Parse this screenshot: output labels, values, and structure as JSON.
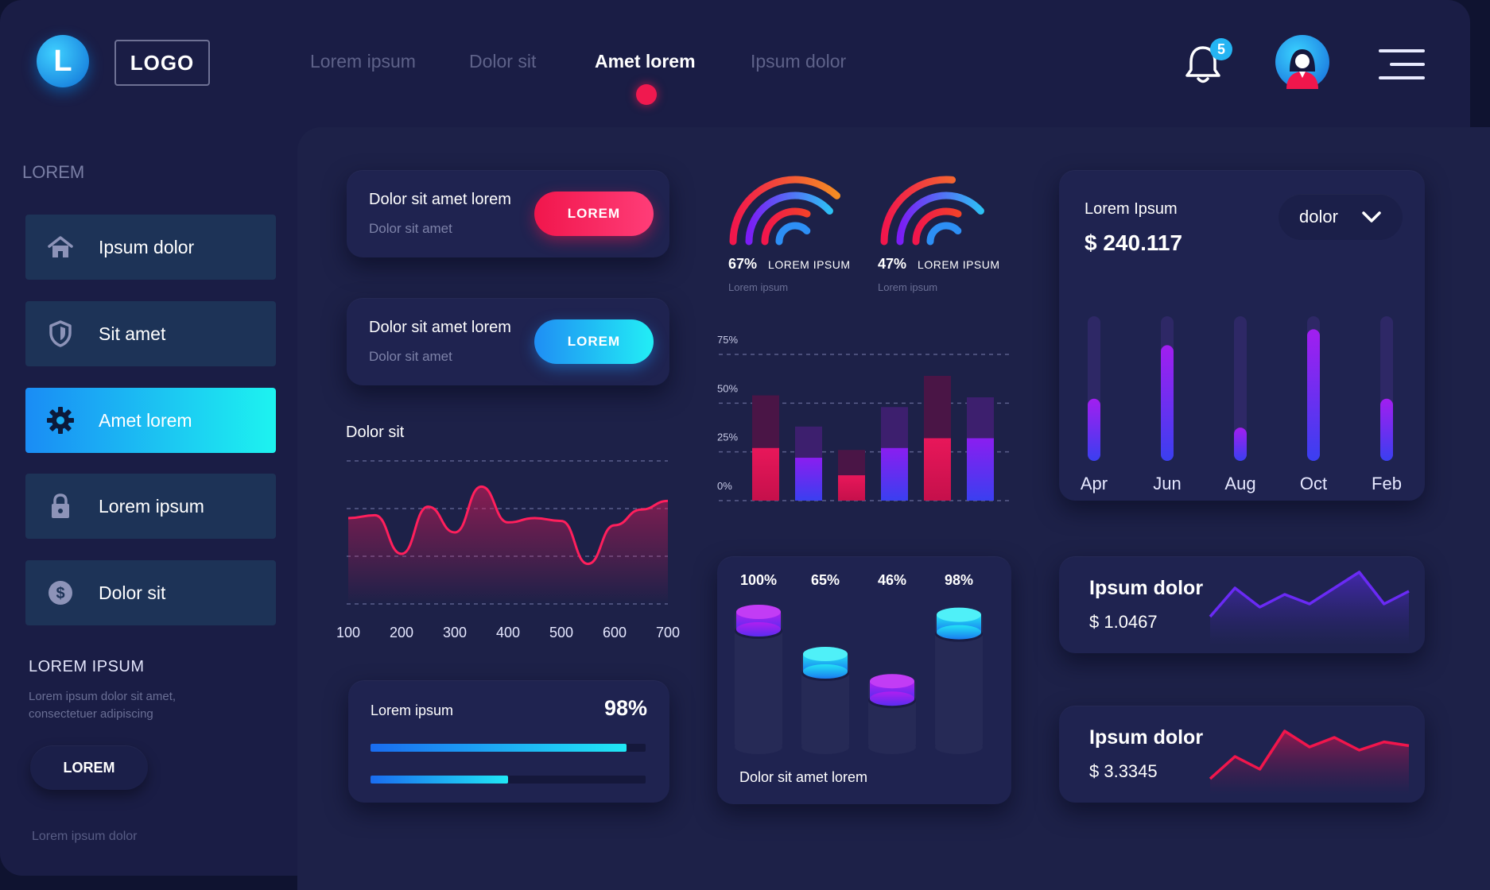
{
  "header": {
    "logo_letter": "L",
    "logo_text": "LOGO",
    "nav": [
      "Lorem ipsum",
      "Dolor sit",
      "Amet lorem",
      "Ipsum dolor"
    ],
    "active_nav": "Amet lorem",
    "notification_count": "5"
  },
  "sidebar": {
    "title": "LOREM",
    "items": [
      {
        "label": "Ipsum dolor",
        "icon": "home-icon"
      },
      {
        "label": "Sit amet",
        "icon": "shield-icon"
      },
      {
        "label": "Amet lorem",
        "icon": "gear-icon",
        "active": true
      },
      {
        "label": "Lorem ipsum",
        "icon": "lock-icon"
      },
      {
        "label": "Dolor sit",
        "icon": "dollar-icon"
      }
    ],
    "section_title": "LOREM IPSUM",
    "section_text": "Lorem ipsum dolor sit amet, consectetuer adipiscing",
    "button": "LOREM",
    "footer": "Lorem ipsum dolor"
  },
  "cards": {
    "action1": {
      "title": "Dolor sit amet lorem",
      "subtitle": "Dolor sit amet",
      "button": "LOREM"
    },
    "action2": {
      "title": "Dolor sit amet lorem",
      "subtitle": "Dolor sit amet",
      "button": "LOREM"
    },
    "progress": {
      "label": "Lorem ipsum",
      "value": "98%",
      "bars": [
        0.93,
        0.5
      ]
    },
    "gauges": [
      {
        "pct": "67%",
        "label": "LOREM IPSUM",
        "sub": "Lorem ipsum"
      },
      {
        "pct": "47%",
        "label": "LOREM IPSUM",
        "sub": "Lorem ipsum"
      }
    ],
    "cylinders_caption": "Dolor sit amet lorem",
    "balance": {
      "label": "Lorem Ipsum",
      "value": "$ 240.117",
      "dropdown": "dolor"
    },
    "mini1": {
      "title": "Ipsum dolor",
      "value": "$ 1.0467"
    },
    "mini2": {
      "title": "Ipsum dolor",
      "value": "$ 3.3345"
    }
  },
  "colors": {
    "accent_red": "#f1164c",
    "accent_blue": "#1f8ef4",
    "accent_cyan": "#22eef5",
    "purple": "#8b1cf5"
  },
  "chart_data": [
    {
      "type": "area",
      "title": "Dolor sit",
      "x": [
        100,
        150,
        200,
        250,
        300,
        350,
        400,
        450,
        500,
        550,
        600,
        650,
        700
      ],
      "values": [
        60,
        62,
        35,
        68,
        50,
        82,
        57,
        60,
        58,
        28,
        55,
        66,
        72
      ],
      "x_ticks": [
        "100",
        "200",
        "300",
        "400",
        "500",
        "600",
        "700"
      ],
      "grid": true
    },
    {
      "type": "bar",
      "stacked": true,
      "y_ticks": [
        "0%",
        "25%",
        "50%",
        "75%"
      ],
      "ylim": [
        0,
        75
      ],
      "series": [
        {
          "values": [
            27,
            22,
            13,
            27,
            32,
            32
          ]
        },
        {
          "values": [
            27,
            16,
            13,
            21,
            32,
            21
          ]
        }
      ]
    },
    {
      "type": "bar",
      "labels": [
        "100%",
        "65%",
        "46%",
        "98%"
      ],
      "values": [
        100,
        65,
        46,
        98
      ]
    },
    {
      "type": "bar",
      "categories": [
        "Apr",
        "Jun",
        "Aug",
        "Oct",
        "Feb"
      ],
      "values": [
        43,
        80,
        23,
        91,
        43
      ],
      "ylim": [
        0,
        100
      ]
    },
    {
      "type": "line",
      "values": [
        40,
        85,
        55,
        75,
        60,
        85,
        110,
        60,
        80
      ]
    },
    {
      "type": "line",
      "values": [
        20,
        55,
        35,
        95,
        70,
        85,
        65,
        78,
        72
      ]
    }
  ]
}
